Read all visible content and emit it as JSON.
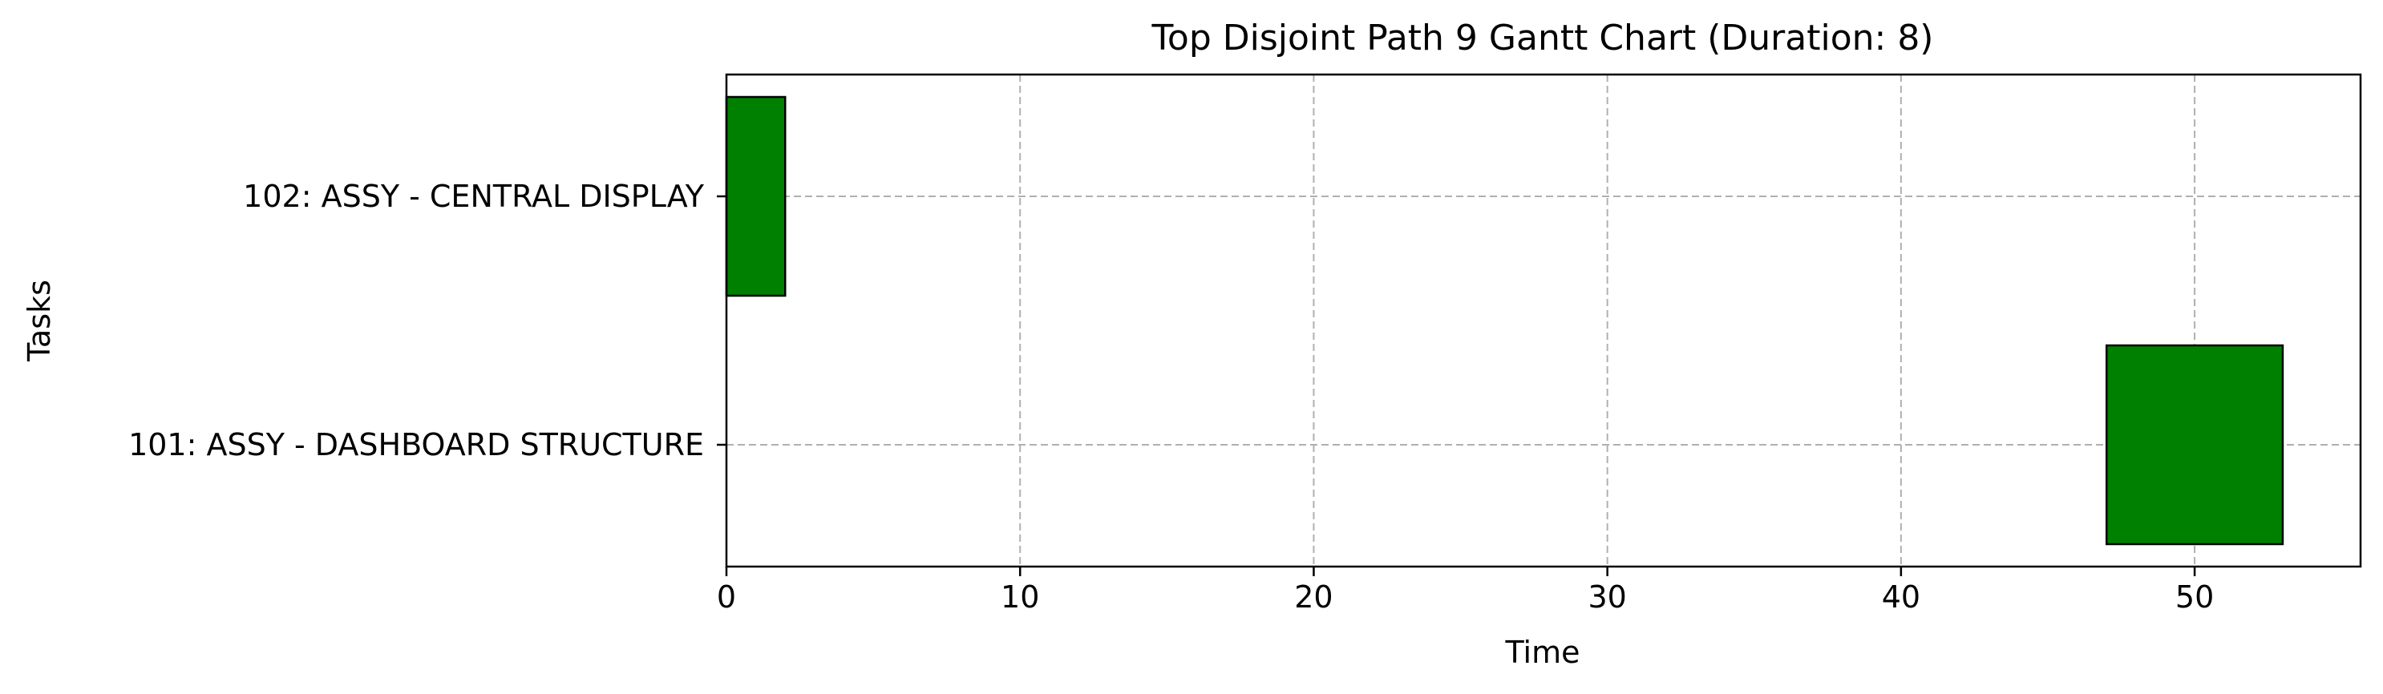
{
  "chart_data": {
    "type": "gantt",
    "title": "Top Disjoint Path 9 Gantt Chart (Duration: 8)",
    "xlabel": "Time",
    "ylabel": "Tasks",
    "xlim": [
      0,
      55.65
    ],
    "xticks": [
      0,
      10,
      20,
      30,
      40,
      50
    ],
    "grid": true,
    "tasks": [
      {
        "label": "101: ASSY - DASHBOARD STRUCTURE",
        "start": 47,
        "end": 53
      },
      {
        "label": "102: ASSY - CENTRAL DISPLAY",
        "start": 0,
        "end": 2
      }
    ],
    "bar_color": "#008000",
    "bar_edge_color": "#000000"
  }
}
